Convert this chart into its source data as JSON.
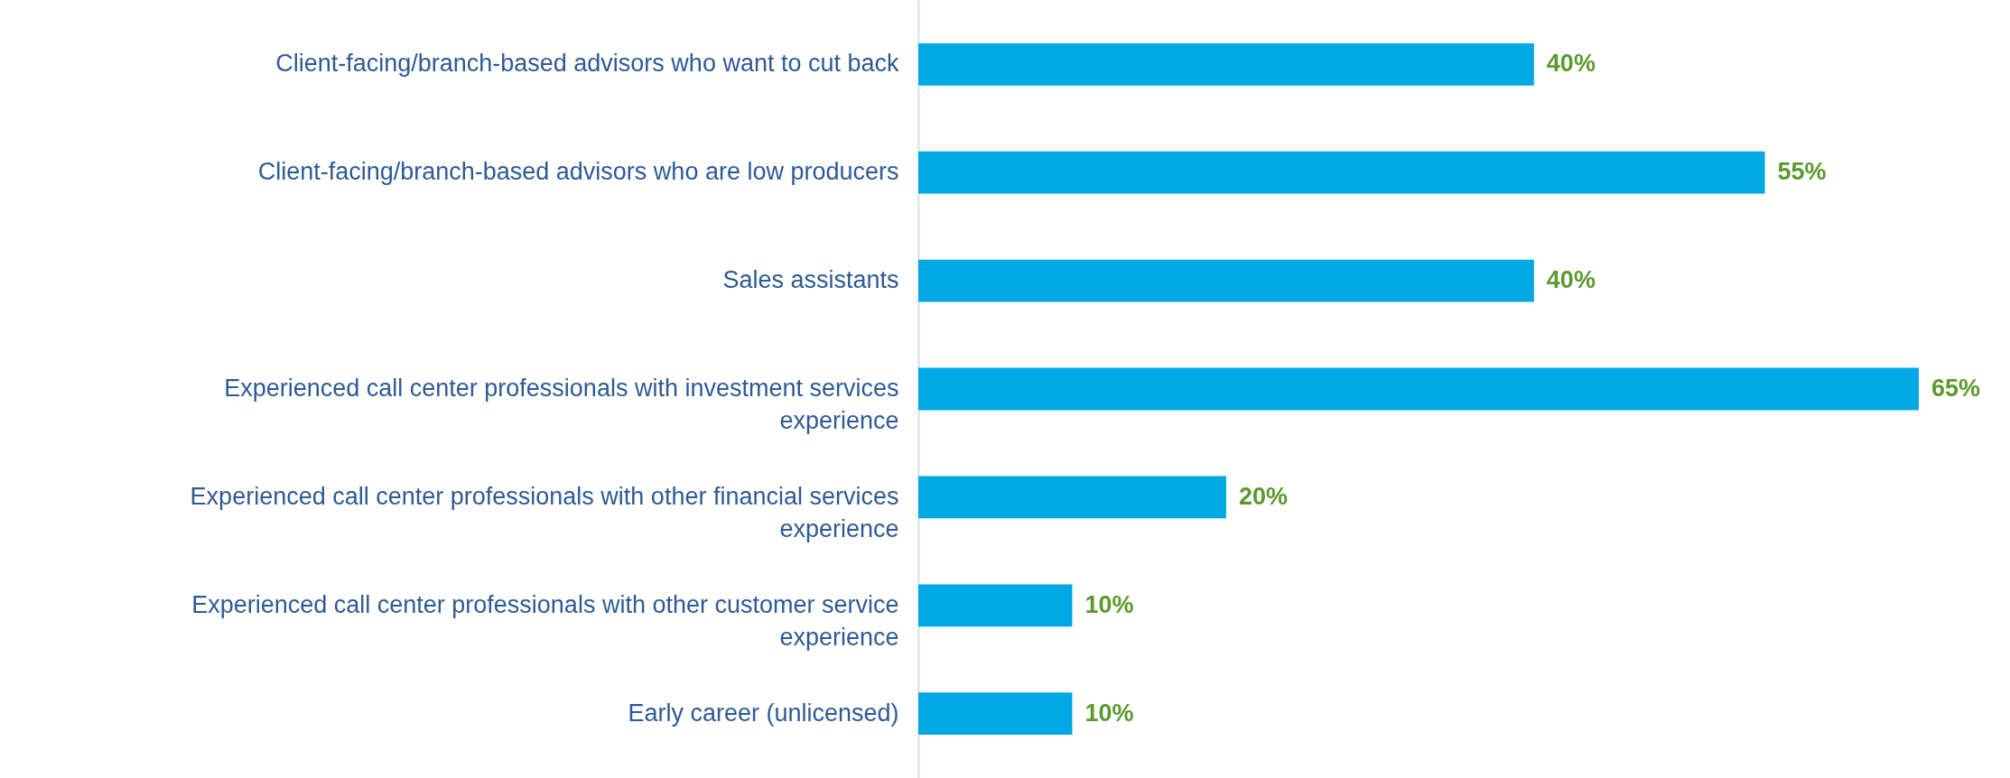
{
  "chart_data": {
    "type": "bar",
    "orientation": "horizontal",
    "categories": [
      "Client-facing/branch-based advisors who want to cut back",
      "Client-facing/branch-based advisors who are low producers",
      "Sales assistants",
      "Experienced call center professionals with investment services experience",
      "Experienced call center professionals with other financial services experience",
      "Experienced call center professionals with other customer service experience",
      "Early career (unlicensed)"
    ],
    "values": [
      40,
      55,
      40,
      65,
      20,
      10,
      10
    ],
    "value_labels": [
      "40%",
      "55%",
      "40%",
      "65%",
      "20%",
      "10%",
      "10%"
    ],
    "color": "#00a9e4",
    "grid": false
  }
}
